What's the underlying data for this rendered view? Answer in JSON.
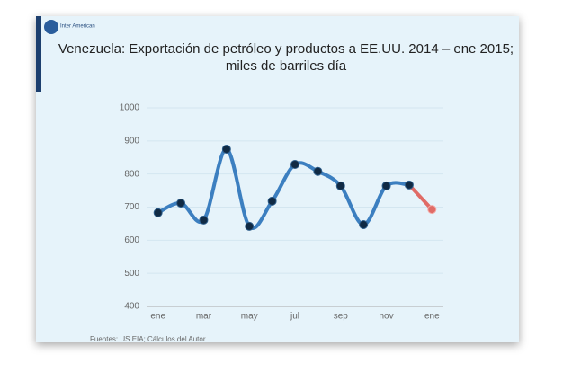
{
  "chart_data": {
    "type": "line",
    "logo": "Inter American",
    "title": "Venezuela: Exportación de petróleo y productos a EE.UU. 2014 – ene 2015;",
    "subtitle": "miles de barriles día",
    "source": "Fuentes: US EIA; Cálculos del Autor",
    "categories": [
      "ene",
      null,
      "mar",
      null,
      "may",
      null,
      "jul",
      null,
      "sep",
      null,
      "nov",
      null,
      "ene"
    ],
    "series": [
      {
        "color": "#3c7fc0",
        "last_color": "#e06b66",
        "values": [
          683,
          712,
          661,
          875,
          642,
          718,
          829,
          808,
          764,
          647,
          764,
          767,
          693
        ]
      }
    ],
    "ylim": [
      400,
      1000
    ],
    "yticks": [
      400,
      500,
      600,
      700,
      800,
      900,
      1000
    ],
    "grid": true
  }
}
